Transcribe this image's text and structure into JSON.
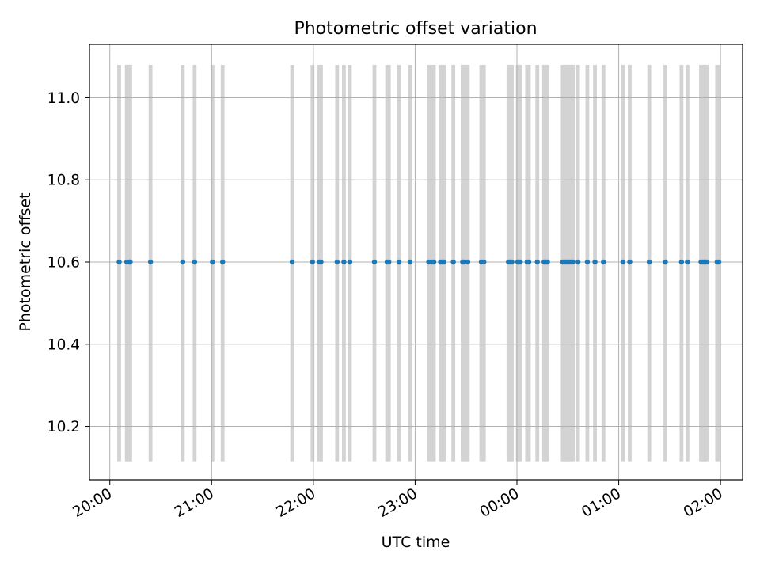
{
  "chart_data": {
    "type": "scatter",
    "title": "Photometric offset variation",
    "xlabel": "UTC time",
    "ylabel": "Photometric offset",
    "x_ticks": [
      {
        "minutes": 0,
        "label": "20:00"
      },
      {
        "minutes": 60,
        "label": "21:00"
      },
      {
        "minutes": 120,
        "label": "22:00"
      },
      {
        "minutes": 180,
        "label": "23:00"
      },
      {
        "minutes": 240,
        "label": "00:00"
      },
      {
        "minutes": 300,
        "label": "01:00"
      },
      {
        "minutes": 360,
        "label": "02:00"
      }
    ],
    "y_ticks": [
      {
        "value": 10.2,
        "label": "10.2"
      },
      {
        "value": 10.4,
        "label": "10.4"
      },
      {
        "value": 10.6,
        "label": "10.6"
      },
      {
        "value": 10.8,
        "label": "10.8"
      },
      {
        "value": 11.0,
        "label": "11.0"
      }
    ],
    "xlim_minutes_since_20h": [
      -12,
      373
    ],
    "ylim": [
      10.07,
      11.13
    ],
    "grid": true,
    "band_range": [
      10.115,
      11.08
    ],
    "band_color": "#d3d3d3",
    "point_color": "#1f77b4",
    "point_value": 10.6,
    "observation_minutes_since_20h": [
      5.5,
      10,
      11.5,
      12,
      24,
      43,
      50,
      60.5,
      66.5,
      107.5,
      119.5,
      123.5,
      124.5,
      134,
      138,
      141.5,
      156,
      163.5,
      164.5,
      170.5,
      177,
      188,
      190,
      191,
      195,
      196,
      197,
      202.5,
      208,
      209,
      211,
      219,
      220.5,
      235,
      236,
      237,
      240.5,
      241,
      242,
      246,
      247,
      252,
      256,
      257,
      258,
      267,
      268,
      269,
      270,
      271,
      272,
      273,
      276,
      281.5,
      286,
      291,
      302.5,
      306.5,
      318,
      327.5,
      337,
      340.5,
      348.5,
      349.5,
      350.5,
      351,
      352,
      358,
      359
    ]
  }
}
